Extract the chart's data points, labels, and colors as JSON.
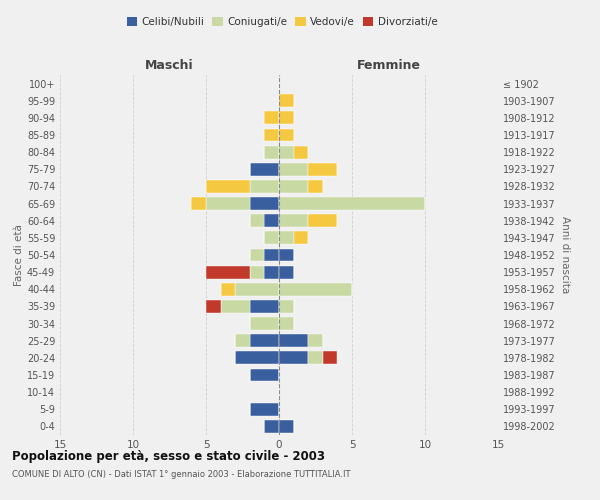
{
  "age_groups": [
    "0-4",
    "5-9",
    "10-14",
    "15-19",
    "20-24",
    "25-29",
    "30-34",
    "35-39",
    "40-44",
    "45-49",
    "50-54",
    "55-59",
    "60-64",
    "65-69",
    "70-74",
    "75-79",
    "80-84",
    "85-89",
    "90-94",
    "95-99",
    "100+"
  ],
  "birth_years": [
    "1998-2002",
    "1993-1997",
    "1988-1992",
    "1983-1987",
    "1978-1982",
    "1973-1977",
    "1968-1972",
    "1963-1967",
    "1958-1962",
    "1953-1957",
    "1948-1952",
    "1943-1947",
    "1938-1942",
    "1933-1937",
    "1928-1932",
    "1923-1927",
    "1918-1922",
    "1913-1917",
    "1908-1912",
    "1903-1907",
    "≤ 1902"
  ],
  "males": {
    "celibe": [
      1,
      2,
      0,
      2,
      3,
      2,
      0,
      2,
      0,
      1,
      1,
      0,
      1,
      2,
      0,
      2,
      0,
      0,
      0,
      0,
      0
    ],
    "coniugato": [
      0,
      0,
      0,
      0,
      0,
      1,
      2,
      2,
      3,
      1,
      1,
      1,
      1,
      3,
      2,
      0,
      1,
      0,
      0,
      0,
      0
    ],
    "vedovo": [
      0,
      0,
      0,
      0,
      0,
      0,
      0,
      0,
      1,
      0,
      0,
      0,
      0,
      1,
      3,
      0,
      0,
      1,
      1,
      0,
      0
    ],
    "divorziato": [
      0,
      0,
      0,
      0,
      0,
      0,
      0,
      1,
      0,
      3,
      0,
      0,
      0,
      0,
      0,
      0,
      0,
      0,
      0,
      0,
      0
    ]
  },
  "females": {
    "nubile": [
      1,
      0,
      0,
      0,
      2,
      2,
      0,
      0,
      0,
      1,
      1,
      0,
      0,
      0,
      0,
      0,
      0,
      0,
      0,
      0,
      0
    ],
    "coniugata": [
      0,
      0,
      0,
      0,
      1,
      1,
      1,
      1,
      5,
      0,
      0,
      1,
      2,
      10,
      2,
      2,
      1,
      0,
      0,
      0,
      0
    ],
    "vedova": [
      0,
      0,
      0,
      0,
      0,
      0,
      0,
      0,
      0,
      0,
      0,
      1,
      2,
      0,
      1,
      2,
      1,
      1,
      1,
      1,
      0
    ],
    "divorziata": [
      0,
      0,
      0,
      0,
      1,
      0,
      0,
      0,
      0,
      0,
      0,
      0,
      0,
      0,
      0,
      0,
      0,
      0,
      0,
      0,
      0
    ]
  },
  "colors": {
    "celibe_nubile": "#3a5f9f",
    "coniugato_coniugata": "#c8d9a4",
    "vedovo_vedova": "#f5c842",
    "divorziato_divorziata": "#c0392b"
  },
  "xlim": 15,
  "title": "Popolazione per età, sesso e stato civile - 2003",
  "subtitle": "COMUNE DI ALTO (CN) - Dati ISTAT 1° gennaio 2003 - Elaborazione TUTTITALIA.IT",
  "ylabel_left": "Fasce di età",
  "ylabel_right": "Anni di nascita",
  "xlabel_left": "Maschi",
  "xlabel_right": "Femmine",
  "legend_labels": [
    "Celibi/Nubili",
    "Coniugati/e",
    "Vedovi/e",
    "Divorziati/e"
  ],
  "background_color": "#f0f0f0",
  "grid_color": "#cccccc"
}
